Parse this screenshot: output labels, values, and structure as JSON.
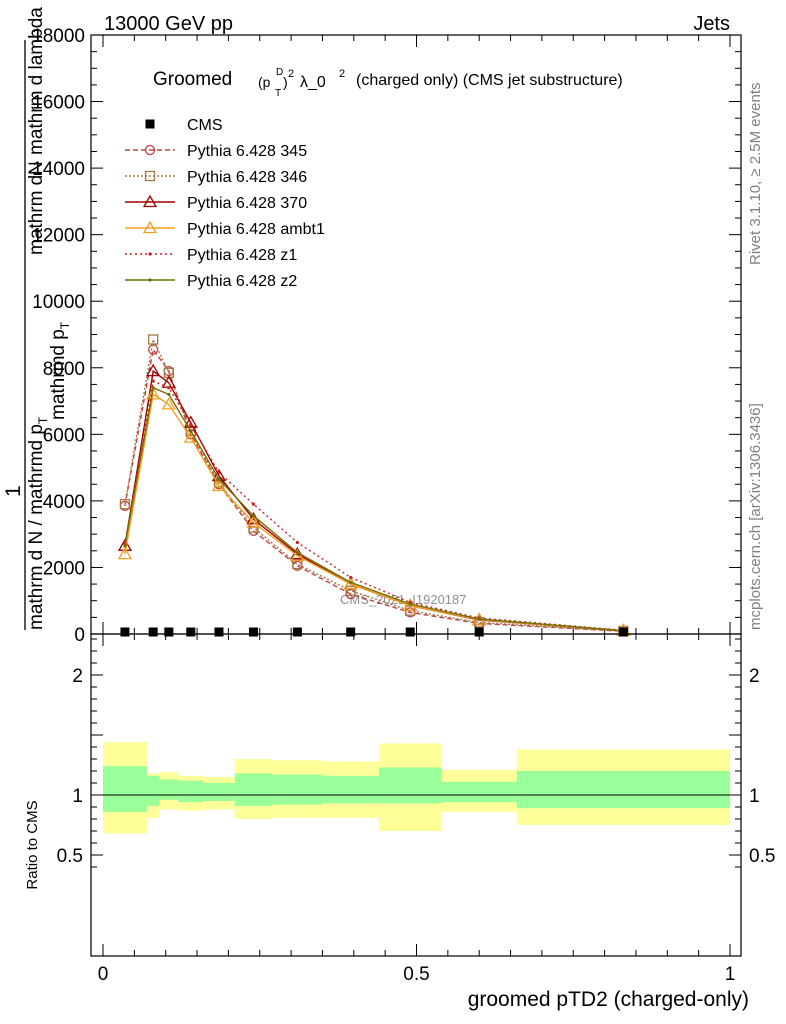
{
  "header": {
    "left": "13000 GeV pp",
    "right": "Jets",
    "title_pre": "Groomed",
    "title_rest": "λ_0",
    "title_suffix": "(charged only) (CMS jet substructure)",
    "title_p": "p",
    "title_sub": "T",
    "title_sup": "D",
    "title_sq": "2",
    "title_sq2": "2"
  },
  "side_text": {
    "rivet": "Rivet 3.1.10, ≥ 2.5M events",
    "mcplots": "mcplots.cern.ch [arXiv:1306.3436]"
  },
  "watermark": "CMS_2021_I1920187",
  "ylabel_main": {
    "one": "1",
    "denom": "mathrm d N / mathrmd p",
    "denom_sub": "T",
    "numer": "mathrm d",
    "numer2": "N",
    "numer3": "mathrmd p",
    "numer3_sub": "T",
    "numer4": "mathrm d lambda"
  },
  "ylabel_ratio": "Ratio to CMS",
  "xlabel": "groomed pTD2 (charged-only)",
  "chart_data": {
    "type": "line",
    "x_ticks": [
      "0",
      "0.5",
      "1"
    ],
    "xlim": [
      0,
      1
    ],
    "main": {
      "ylim": [
        0,
        18000
      ],
      "y_ticks": [
        "0",
        "2000",
        "4000",
        "6000",
        "8000",
        "10000",
        "12000",
        "14000",
        "16000",
        "18000"
      ]
    },
    "ratio": {
      "ylim": [
        0.4,
        2.3
      ],
      "y_ticks": [
        "0.5",
        "1",
        "2"
      ]
    },
    "bins": [
      {
        "lo": 0.0,
        "hi": 0.07
      },
      {
        "lo": 0.07,
        "hi": 0.09
      },
      {
        "lo": 0.09,
        "hi": 0.12
      },
      {
        "lo": 0.12,
        "hi": 0.16
      },
      {
        "lo": 0.16,
        "hi": 0.21
      },
      {
        "lo": 0.21,
        "hi": 0.27
      },
      {
        "lo": 0.27,
        "hi": 0.35
      },
      {
        "lo": 0.35,
        "hi": 0.44
      },
      {
        "lo": 0.44,
        "hi": 0.54
      },
      {
        "lo": 0.54,
        "hi": 0.66
      },
      {
        "lo": 0.66,
        "hi": 1.0
      }
    ],
    "cms": {
      "name": "CMS",
      "x": [
        0.035,
        0.08,
        0.105,
        0.14,
        0.185,
        0.24,
        0.31,
        0.395,
        0.49,
        0.6,
        0.83
      ],
      "y": [
        60,
        60,
        60,
        60,
        60,
        60,
        60,
        60,
        60,
        60,
        60
      ]
    },
    "band_inner": [
      [
        0.86,
        1.24
      ],
      [
        0.91,
        1.16
      ],
      [
        0.96,
        1.13
      ],
      [
        0.94,
        1.12
      ],
      [
        0.95,
        1.1
      ],
      [
        0.91,
        1.18
      ],
      [
        0.92,
        1.17
      ],
      [
        0.93,
        1.16
      ],
      [
        0.93,
        1.23
      ],
      [
        0.94,
        1.11
      ],
      [
        0.89,
        1.2
      ]
    ],
    "band_outer": [
      [
        0.68,
        1.44
      ],
      [
        0.81,
        1.18
      ],
      [
        0.88,
        1.19
      ],
      [
        0.87,
        1.16
      ],
      [
        0.88,
        1.15
      ],
      [
        0.8,
        1.3
      ],
      [
        0.81,
        1.29
      ],
      [
        0.81,
        1.28
      ],
      [
        0.7,
        1.43
      ],
      [
        0.86,
        1.21
      ],
      [
        0.75,
        1.38
      ]
    ],
    "series": [
      {
        "name": "Pythia 6.428 345",
        "color": "#c04040",
        "dash": "5,3",
        "marker": "circle",
        "x": [
          0.035,
          0.08,
          0.105,
          0.14,
          0.185,
          0.24,
          0.31,
          0.395,
          0.49,
          0.6,
          0.83
        ],
        "y": [
          3850,
          8550,
          7900,
          6000,
          4500,
          3100,
          2050,
          1200,
          650,
          320,
          80
        ]
      },
      {
        "name": "Pythia 6.428 346",
        "color": "#a07840",
        "dash": "2,2",
        "marker": "square",
        "x": [
          0.035,
          0.08,
          0.105,
          0.14,
          0.185,
          0.24,
          0.31,
          0.395,
          0.49,
          0.6,
          0.83
        ],
        "y": [
          3900,
          8850,
          7850,
          6100,
          4550,
          3200,
          2100,
          1300,
          700,
          350,
          90
        ]
      },
      {
        "name": "Pythia 6.428 370",
        "color": "#a00000",
        "dash": "",
        "marker": "triangle",
        "x": [
          0.035,
          0.08,
          0.105,
          0.14,
          0.185,
          0.24,
          0.31,
          0.395,
          0.49,
          0.6,
          0.83
        ],
        "y": [
          2650,
          7900,
          7550,
          6350,
          4750,
          3450,
          2400,
          1500,
          850,
          420,
          100
        ]
      },
      {
        "name": "Pythia 6.428 ambt1",
        "color": "#f0a020",
        "dash": "",
        "marker": "triangle",
        "x": [
          0.035,
          0.08,
          0.105,
          0.14,
          0.185,
          0.24,
          0.31,
          0.395,
          0.49,
          0.6,
          0.83
        ],
        "y": [
          2400,
          7200,
          6900,
          5900,
          4450,
          3350,
          2350,
          1500,
          850,
          430,
          100
        ]
      },
      {
        "name": "Pythia 6.428 z1",
        "color": "#d02020",
        "dash": "2,3",
        "marker": "dot",
        "x": [
          0.035,
          0.08,
          0.105,
          0.14,
          0.185,
          0.24,
          0.31,
          0.395,
          0.49,
          0.6,
          0.83
        ],
        "y": [
          2700,
          7600,
          7400,
          6300,
          4850,
          3900,
          2750,
          1700,
          950,
          480,
          110
        ]
      },
      {
        "name": "Pythia 6.428 z2",
        "color": "#707000",
        "dash": "",
        "marker": "dot",
        "x": [
          0.035,
          0.08,
          0.105,
          0.14,
          0.185,
          0.24,
          0.31,
          0.395,
          0.49,
          0.6,
          0.83
        ],
        "y": [
          2650,
          7400,
          7200,
          6100,
          4650,
          3550,
          2450,
          1550,
          900,
          450,
          100
        ]
      }
    ]
  }
}
